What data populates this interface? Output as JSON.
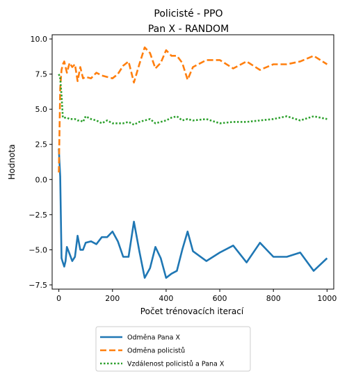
{
  "chart_data": {
    "type": "line",
    "title": "Policisté - PPO",
    "subtitle": "Pan X - RANDOM",
    "xlabel": "Počet trénovacích iterací",
    "ylabel": "Hodnota",
    "xlim": [
      -25,
      1025
    ],
    "ylim": [
      -7.8,
      10.3
    ],
    "xticks": [
      0,
      200,
      400,
      600,
      800,
      1000
    ],
    "xtick_labels": [
      "0",
      "200",
      "400",
      "600",
      "800",
      "1000"
    ],
    "yticks": [
      -7.5,
      -5.0,
      -2.5,
      0.0,
      2.5,
      5.0,
      7.5,
      10.0
    ],
    "ytick_labels": [
      "−7.5",
      "−5.0",
      "−2.5",
      "0.0",
      "2.5",
      "5.0",
      "7.5",
      "10.0"
    ],
    "grid": false,
    "legend_position": "below-center",
    "series": [
      {
        "name": "Odměna Pana X",
        "color": "#1f77b4",
        "style": "solid",
        "x": [
          0,
          5,
          10,
          15,
          20,
          25,
          30,
          40,
          50,
          60,
          70,
          80,
          90,
          100,
          120,
          140,
          160,
          180,
          200,
          220,
          240,
          260,
          280,
          300,
          320,
          340,
          360,
          380,
          400,
          420,
          440,
          460,
          480,
          500,
          550,
          600,
          650,
          700,
          750,
          800,
          850,
          900,
          950,
          1000
        ],
        "y": [
          2.2,
          0.2,
          -5.6,
          -5.9,
          -6.2,
          -5.8,
          -4.8,
          -5.3,
          -5.8,
          -5.5,
          -4.0,
          -5.0,
          -5.0,
          -4.5,
          -4.4,
          -4.6,
          -4.1,
          -4.1,
          -3.7,
          -4.4,
          -5.5,
          -5.5,
          -3.0,
          -5.1,
          -7.0,
          -6.3,
          -4.8,
          -5.6,
          -7.0,
          -6.7,
          -6.5,
          -5.0,
          -3.7,
          -5.1,
          -5.8,
          -5.2,
          -4.7,
          -5.9,
          -4.5,
          -5.5,
          -5.5,
          -5.2,
          -6.5,
          -5.6
        ]
      },
      {
        "name": "Odměna policistů",
        "color": "#ff7f0e",
        "style": "dashed",
        "x": [
          0,
          5,
          10,
          15,
          20,
          30,
          40,
          50,
          60,
          70,
          80,
          90,
          100,
          120,
          140,
          160,
          180,
          200,
          220,
          240,
          260,
          280,
          300,
          320,
          340,
          360,
          380,
          400,
          420,
          440,
          460,
          480,
          500,
          550,
          600,
          650,
          700,
          750,
          800,
          850,
          900,
          950,
          1000
        ],
        "y": [
          0.5,
          6.5,
          7.8,
          8.2,
          8.4,
          7.6,
          8.3,
          8.0,
          8.2,
          7.0,
          8.0,
          7.2,
          7.3,
          7.2,
          7.6,
          7.4,
          7.3,
          7.2,
          7.5,
          8.1,
          8.4,
          6.9,
          8.2,
          9.4,
          9.0,
          7.9,
          8.3,
          9.2,
          8.8,
          8.8,
          8.3,
          7.1,
          8.0,
          8.5,
          8.5,
          7.9,
          8.4,
          7.8,
          8.2,
          8.2,
          8.4,
          8.8,
          8.2
        ]
      },
      {
        "name": "Vzdálenost policistů a Pana X",
        "color": "#2ca02c",
        "style": "dotted",
        "x": [
          0,
          5,
          10,
          15,
          20,
          30,
          40,
          50,
          60,
          70,
          80,
          90,
          100,
          120,
          140,
          160,
          180,
          200,
          220,
          240,
          260,
          280,
          300,
          320,
          340,
          360,
          380,
          400,
          420,
          440,
          460,
          480,
          500,
          550,
          600,
          650,
          700,
          750,
          800,
          850,
          900,
          950,
          1000
        ],
        "y": [
          7.5,
          7.2,
          6.0,
          4.4,
          4.4,
          4.4,
          4.3,
          4.3,
          4.3,
          4.2,
          4.2,
          4.1,
          4.5,
          4.3,
          4.2,
          4.0,
          4.2,
          4.0,
          4.0,
          4.0,
          4.1,
          3.9,
          4.1,
          4.2,
          4.3,
          4.0,
          4.1,
          4.2,
          4.4,
          4.5,
          4.2,
          4.3,
          4.2,
          4.3,
          4.0,
          4.1,
          4.1,
          4.2,
          4.3,
          4.5,
          4.2,
          4.5,
          4.3
        ]
      }
    ]
  }
}
